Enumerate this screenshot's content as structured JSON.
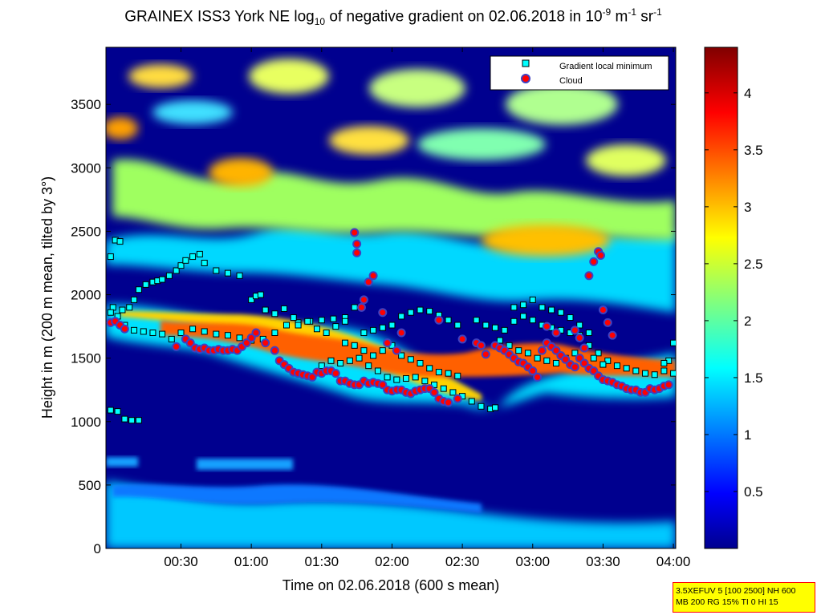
{
  "figure": {
    "title_prefix": "GRAINEX ISS3 York NE log",
    "title_sub": "10",
    "title_mid": " of negative gradient on 02.06.2018 in 10",
    "title_sup1": "-9",
    "title_unit_m": " m",
    "title_sup2": "-1",
    "title_unit_sr": " sr",
    "title_sup3": "-1",
    "info_line1": "3.5XEFUV 5 [100 2500] NH 600",
    "info_line2": "MB 200 RG 15% TI 0 HI 15",
    "colors": {
      "background_low": "#00008f",
      "point_face": "#00ffff",
      "cloud_face": "#ff0000",
      "cloud_edge": "#4040c0",
      "info_bg": "#ffff00",
      "info_border": "#ff0000"
    }
  },
  "chart_data": {
    "type": "heatmap",
    "xlabel": "Time on 02.06.2018 (600 s mean)",
    "ylabel": "Height in m (200 m mean, tilted by 3°)",
    "x_tick_labels": [
      "00:30",
      "01:00",
      "01:30",
      "02:00",
      "02:30",
      "03:00",
      "03:30",
      "04:00"
    ],
    "x_tick_minutes": [
      30,
      60,
      90,
      120,
      150,
      180,
      210,
      240
    ],
    "xlim_minutes": [
      -2,
      241
    ],
    "y_tick_labels": [
      "0",
      "500",
      "1000",
      "1500",
      "2000",
      "2500",
      "3000",
      "3500"
    ],
    "y_tick_values": [
      0,
      500,
      1000,
      1500,
      2000,
      2500,
      3000,
      3500
    ],
    "ylim": [
      0,
      3950
    ],
    "colorbar": {
      "tick_labels": [
        "0.5",
        "1",
        "1.5",
        "2",
        "2.5",
        "3",
        "3.5",
        "4"
      ],
      "tick_values": [
        0.5,
        1,
        1.5,
        2,
        2.5,
        3,
        3.5,
        4
      ],
      "range": [
        0,
        4.4
      ],
      "colormap": "jet"
    },
    "legend": {
      "position": "top-right",
      "entries": [
        {
          "label": "Gradient local minimum",
          "marker": "square"
        },
        {
          "label": "Cloud",
          "marker": "circle"
        }
      ]
    },
    "series": [
      {
        "name": "Gradient local minimum",
        "marker": "square",
        "points": [
          [
            0,
            2300
          ],
          [
            2,
            2430
          ],
          [
            4,
            2420
          ],
          [
            1,
            1900
          ],
          [
            5,
            1880
          ],
          [
            8,
            1900
          ],
          [
            10,
            1960
          ],
          [
            12,
            2040
          ],
          [
            15,
            2080
          ],
          [
            18,
            2100
          ],
          [
            20,
            2110
          ],
          [
            22,
            2120
          ],
          [
            25,
            2150
          ],
          [
            28,
            2190
          ],
          [
            30,
            2230
          ],
          [
            32,
            2270
          ],
          [
            35,
            2300
          ],
          [
            38,
            2320
          ],
          [
            40,
            2250
          ],
          [
            45,
            2190
          ],
          [
            50,
            2170
          ],
          [
            55,
            2150
          ],
          [
            0,
            1860
          ],
          [
            3,
            1830
          ],
          [
            6,
            1760
          ],
          [
            10,
            1720
          ],
          [
            14,
            1710
          ],
          [
            18,
            1700
          ],
          [
            22,
            1690
          ],
          [
            26,
            1650
          ],
          [
            30,
            1700
          ],
          [
            35,
            1730
          ],
          [
            40,
            1710
          ],
          [
            45,
            1690
          ],
          [
            50,
            1680
          ],
          [
            55,
            1660
          ],
          [
            60,
            1640
          ],
          [
            65,
            1650
          ],
          [
            70,
            1700
          ],
          [
            75,
            1760
          ],
          [
            80,
            1780
          ],
          [
            85,
            1790
          ],
          [
            90,
            1800
          ],
          [
            95,
            1810
          ],
          [
            100,
            1820
          ],
          [
            0,
            1090
          ],
          [
            3,
            1080
          ],
          [
            6,
            1020
          ],
          [
            9,
            1010
          ],
          [
            12,
            1010
          ],
          [
            60,
            1960
          ],
          [
            62,
            1990
          ],
          [
            64,
            2000
          ],
          [
            66,
            1880
          ],
          [
            70,
            1850
          ],
          [
            74,
            1890
          ],
          [
            78,
            1820
          ],
          [
            80,
            1760
          ],
          [
            84,
            1790
          ],
          [
            88,
            1730
          ],
          [
            92,
            1700
          ],
          [
            96,
            1750
          ],
          [
            100,
            1790
          ],
          [
            104,
            1900
          ],
          [
            108,
            1700
          ],
          [
            112,
            1720
          ],
          [
            116,
            1740
          ],
          [
            120,
            1760
          ],
          [
            124,
            1830
          ],
          [
            128,
            1860
          ],
          [
            132,
            1880
          ],
          [
            136,
            1870
          ],
          [
            140,
            1840
          ],
          [
            144,
            1800
          ],
          [
            148,
            1760
          ],
          [
            90,
            1440
          ],
          [
            94,
            1480
          ],
          [
            98,
            1460
          ],
          [
            102,
            1480
          ],
          [
            106,
            1500
          ],
          [
            110,
            1440
          ],
          [
            114,
            1400
          ],
          [
            118,
            1350
          ],
          [
            122,
            1330
          ],
          [
            126,
            1340
          ],
          [
            130,
            1350
          ],
          [
            134,
            1320
          ],
          [
            138,
            1290
          ],
          [
            142,
            1260
          ],
          [
            146,
            1230
          ],
          [
            150,
            1200
          ],
          [
            154,
            1160
          ],
          [
            158,
            1120
          ],
          [
            162,
            1100
          ],
          [
            164,
            1110
          ],
          [
            100,
            1620
          ],
          [
            104,
            1600
          ],
          [
            108,
            1560
          ],
          [
            112,
            1520
          ],
          [
            116,
            1560
          ],
          [
            120,
            1600
          ],
          [
            124,
            1520
          ],
          [
            128,
            1490
          ],
          [
            132,
            1460
          ],
          [
            136,
            1420
          ],
          [
            140,
            1390
          ],
          [
            144,
            1380
          ],
          [
            148,
            1360
          ],
          [
            156,
            1800
          ],
          [
            160,
            1760
          ],
          [
            164,
            1740
          ],
          [
            168,
            1720
          ],
          [
            172,
            1790
          ],
          [
            176,
            1830
          ],
          [
            180,
            1800
          ],
          [
            184,
            1760
          ],
          [
            188,
            1740
          ],
          [
            192,
            1720
          ],
          [
            196,
            1700
          ],
          [
            200,
            1680
          ],
          [
            204,
            1600
          ],
          [
            208,
            1540
          ],
          [
            212,
            1480
          ],
          [
            216,
            1440
          ],
          [
            220,
            1420
          ],
          [
            224,
            1400
          ],
          [
            228,
            1380
          ],
          [
            232,
            1370
          ],
          [
            236,
            1400
          ],
          [
            240,
            1380
          ],
          [
            172,
            1900
          ],
          [
            176,
            1920
          ],
          [
            180,
            1960
          ],
          [
            184,
            1900
          ],
          [
            188,
            1880
          ],
          [
            192,
            1860
          ],
          [
            196,
            1820
          ],
          [
            200,
            1760
          ],
          [
            204,
            1700
          ],
          [
            166,
            1640
          ],
          [
            170,
            1600
          ],
          [
            174,
            1560
          ],
          [
            178,
            1540
          ],
          [
            182,
            1500
          ],
          [
            186,
            1480
          ],
          [
            190,
            1460
          ],
          [
            194,
            1500
          ],
          [
            198,
            1540
          ],
          [
            202,
            1580
          ],
          [
            206,
            1500
          ],
          [
            210,
            1450
          ],
          [
            240,
            1620
          ],
          [
            238,
            1480
          ],
          [
            236,
            1460
          ]
        ]
      },
      {
        "name": "Cloud",
        "marker": "circle",
        "points": [
          [
            0,
            1780
          ],
          [
            2,
            1790
          ],
          [
            4,
            1760
          ],
          [
            6,
            1730
          ],
          [
            28,
            1590
          ],
          [
            32,
            1650
          ],
          [
            34,
            1620
          ],
          [
            36,
            1580
          ],
          [
            38,
            1570
          ],
          [
            40,
            1580
          ],
          [
            42,
            1560
          ],
          [
            44,
            1560
          ],
          [
            46,
            1570
          ],
          [
            48,
            1560
          ],
          [
            50,
            1560
          ],
          [
            52,
            1570
          ],
          [
            54,
            1560
          ],
          [
            56,
            1590
          ],
          [
            58,
            1620
          ],
          [
            60,
            1660
          ],
          [
            62,
            1700
          ],
          [
            66,
            1620
          ],
          [
            70,
            1560
          ],
          [
            72,
            1480
          ],
          [
            74,
            1450
          ],
          [
            76,
            1420
          ],
          [
            78,
            1390
          ],
          [
            80,
            1380
          ],
          [
            82,
            1370
          ],
          [
            84,
            1360
          ],
          [
            86,
            1350
          ],
          [
            88,
            1390
          ],
          [
            90,
            1380
          ],
          [
            92,
            1400
          ],
          [
            94,
            1400
          ],
          [
            96,
            1380
          ],
          [
            98,
            1320
          ],
          [
            100,
            1320
          ],
          [
            102,
            1300
          ],
          [
            104,
            1290
          ],
          [
            106,
            1290
          ],
          [
            108,
            1320
          ],
          [
            110,
            1300
          ],
          [
            112,
            1310
          ],
          [
            114,
            1300
          ],
          [
            116,
            1290
          ],
          [
            118,
            1250
          ],
          [
            120,
            1240
          ],
          [
            122,
            1250
          ],
          [
            124,
            1250
          ],
          [
            126,
            1230
          ],
          [
            128,
            1220
          ],
          [
            130,
            1240
          ],
          [
            132,
            1250
          ],
          [
            134,
            1260
          ],
          [
            136,
            1260
          ],
          [
            138,
            1230
          ],
          [
            140,
            1180
          ],
          [
            142,
            1160
          ],
          [
            144,
            1150
          ],
          [
            148,
            1180
          ],
          [
            150,
            1650
          ],
          [
            156,
            1620
          ],
          [
            158,
            1600
          ],
          [
            160,
            1530
          ],
          [
            164,
            1600
          ],
          [
            166,
            1580
          ],
          [
            168,
            1560
          ],
          [
            170,
            1530
          ],
          [
            172,
            1500
          ],
          [
            174,
            1470
          ],
          [
            176,
            1460
          ],
          [
            178,
            1430
          ],
          [
            180,
            1400
          ],
          [
            182,
            1350
          ],
          [
            184,
            1560
          ],
          [
            186,
            1620
          ],
          [
            188,
            1590
          ],
          [
            190,
            1560
          ],
          [
            192,
            1520
          ],
          [
            194,
            1490
          ],
          [
            196,
            1450
          ],
          [
            198,
            1430
          ],
          [
            200,
            1500
          ],
          [
            202,
            1460
          ],
          [
            204,
            1420
          ],
          [
            206,
            1400
          ],
          [
            208,
            1360
          ],
          [
            210,
            1330
          ],
          [
            212,
            1320
          ],
          [
            214,
            1310
          ],
          [
            216,
            1290
          ],
          [
            218,
            1280
          ],
          [
            220,
            1260
          ],
          [
            222,
            1250
          ],
          [
            224,
            1250
          ],
          [
            226,
            1230
          ],
          [
            228,
            1230
          ],
          [
            230,
            1260
          ],
          [
            232,
            1250
          ],
          [
            234,
            1260
          ],
          [
            236,
            1280
          ],
          [
            238,
            1290
          ],
          [
            104,
            2490
          ],
          [
            105,
            2400
          ],
          [
            105,
            2330
          ],
          [
            107,
            1900
          ],
          [
            108,
            1960
          ],
          [
            110,
            2100
          ],
          [
            112,
            2150
          ],
          [
            116,
            1860
          ],
          [
            118,
            1620
          ],
          [
            122,
            1560
          ],
          [
            124,
            1700
          ],
          [
            140,
            1800
          ],
          [
            186,
            1750
          ],
          [
            190,
            1700
          ],
          [
            198,
            1720
          ],
          [
            200,
            1660
          ],
          [
            202,
            1580
          ],
          [
            204,
            2150
          ],
          [
            206,
            2260
          ],
          [
            208,
            2340
          ],
          [
            209,
            2310
          ],
          [
            210,
            1880
          ],
          [
            212,
            1780
          ],
          [
            214,
            1680
          ]
        ]
      }
    ]
  }
}
